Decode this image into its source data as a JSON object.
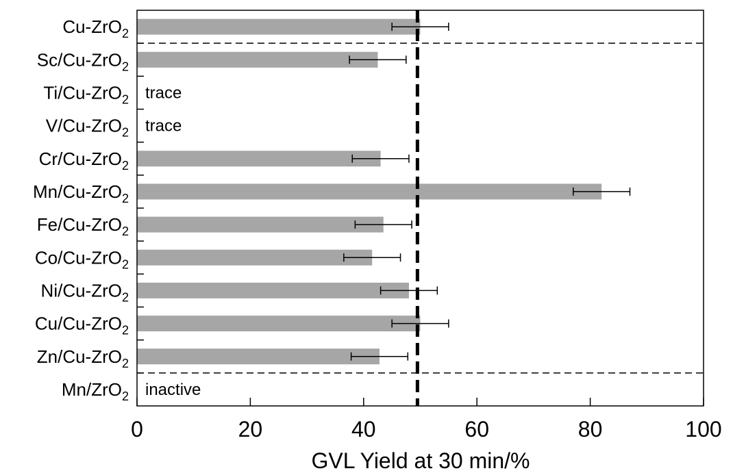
{
  "chart_data": {
    "type": "bar",
    "orientation": "horizontal",
    "categories": [
      "Cu-ZrO2",
      "Sc/Cu-ZrO2",
      "Ti/Cu-ZrO2",
      "V/Cu-ZrO2",
      "Cr/Cu-ZrO2",
      "Mn/Cu-ZrO2",
      "Fe/Cu-ZrO2",
      "Co/Cu-ZrO2",
      "Ni/Cu-ZrO2",
      "Cu/Cu-ZrO2",
      "Zn/Cu-ZrO2",
      "Mn/ZrO2"
    ],
    "category_labels": [
      {
        "main": "Cu-ZrO",
        "sub": "2"
      },
      {
        "main": "Sc/Cu-ZrO",
        "sub": "2"
      },
      {
        "main": "Ti/Cu-ZrO",
        "sub": "2"
      },
      {
        "main": "V/Cu-ZrO",
        "sub": "2"
      },
      {
        "main": "Cr/Cu-ZrO",
        "sub": "2"
      },
      {
        "main": "Mn/Cu-ZrO",
        "sub": "2"
      },
      {
        "main": "Fe/Cu-ZrO",
        "sub": "2"
      },
      {
        "main": "Co/Cu-ZrO",
        "sub": "2"
      },
      {
        "main": "Ni/Cu-ZrO",
        "sub": "2"
      },
      {
        "main": "Cu/Cu-ZrO",
        "sub": "2"
      },
      {
        "main": "Zn/Cu-ZrO",
        "sub": "2"
      },
      {
        "main": "Mn/ZrO",
        "sub": "2"
      }
    ],
    "values": [
      50,
      42.5,
      null,
      null,
      43,
      82,
      43.5,
      41.5,
      48,
      50,
      42.8,
      null
    ],
    "error": [
      5,
      5,
      null,
      null,
      5,
      5,
      5,
      5,
      5,
      5,
      5,
      null
    ],
    "annotations": [
      {
        "category_index": 2,
        "text": "trace"
      },
      {
        "category_index": 3,
        "text": "trace"
      },
      {
        "category_index": 11,
        "text": "inactive"
      }
    ],
    "reference_line": {
      "x": 49.5,
      "style": "bold-dashed"
    },
    "group_separators_after": [
      0,
      10
    ],
    "xlabel": "GVL Yield at 30 min/%",
    "ylabel": "",
    "xlim": [
      0,
      100
    ],
    "xticks": [
      "0",
      "20",
      "40",
      "60",
      "80",
      "100"
    ],
    "grid": false,
    "bar_color": "#a6a6a6",
    "axis_color": "#000000"
  }
}
